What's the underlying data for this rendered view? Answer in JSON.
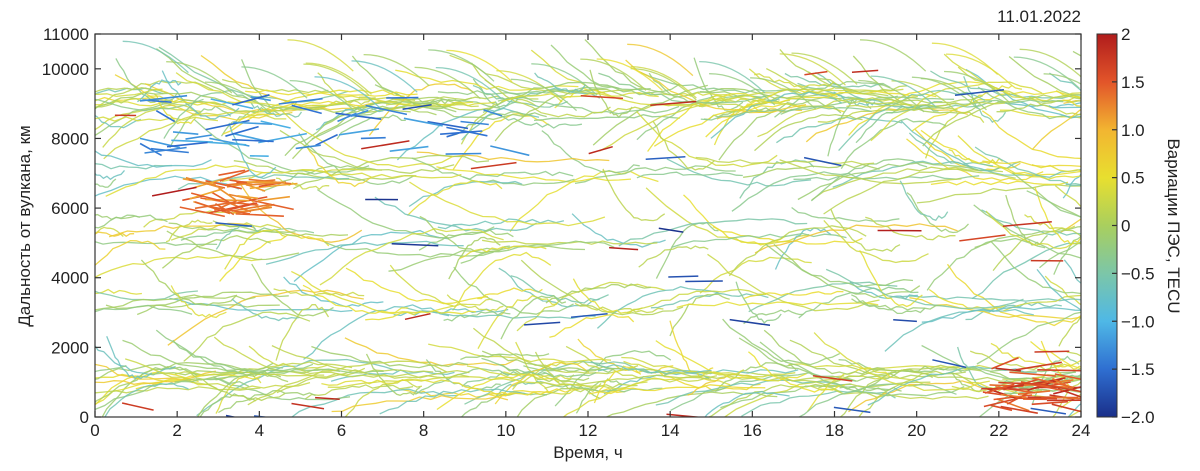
{
  "chart_data": {
    "type": "scatter",
    "date_label": "11.01.2022",
    "xlabel": "Время, ч",
    "ylabel": "Дальность от вулкана, км",
    "colorbar_label": "Вариации ПЭС, TECU",
    "xlim": [
      0,
      24
    ],
    "ylim": [
      0,
      11000
    ],
    "x_ticks": [
      "0",
      "2",
      "4",
      "6",
      "8",
      "10",
      "12",
      "14",
      "16",
      "18",
      "20",
      "22",
      "24"
    ],
    "y_ticks": [
      "0",
      "2000",
      "4000",
      "6000",
      "8000",
      "10000",
      "11000"
    ],
    "colorbar_range": [
      -2.0,
      2.0
    ],
    "colorbar_ticks": [
      "2",
      "1.5",
      "1.0",
      "0.5",
      "0",
      "−0.5",
      "−1.0",
      "−1.5",
      "−2.0"
    ],
    "colormap": [
      "#1a2f8a",
      "#2f6fd1",
      "#4fb8e6",
      "#7cc6a8",
      "#a9cf5e",
      "#e8df2f",
      "#f2b531",
      "#e2552a",
      "#b01c1c"
    ],
    "grid": false,
    "track_bands_km": [
      {
        "center": 9000,
        "spread": 900,
        "tracks": 150
      },
      {
        "center": 7000,
        "spread": 700,
        "tracks": 60
      },
      {
        "center": 5200,
        "spread": 900,
        "tracks": 70
      },
      {
        "center": 3300,
        "spread": 800,
        "tracks": 70
      },
      {
        "center": 1100,
        "spread": 900,
        "tracks": 150
      }
    ],
    "disturbance_regions": [
      {
        "label": "negative",
        "x": [
          1,
          10
        ],
        "y": [
          7500,
          9200
        ],
        "value": -1.5
      },
      {
        "label": "positive",
        "x": [
          2,
          4
        ],
        "y": [
          5800,
          7000
        ],
        "value": 1.5
      },
      {
        "label": "positive",
        "x": [
          21.5,
          23.5
        ],
        "y": [
          300,
          1400
        ],
        "value": 1.8
      }
    ]
  }
}
